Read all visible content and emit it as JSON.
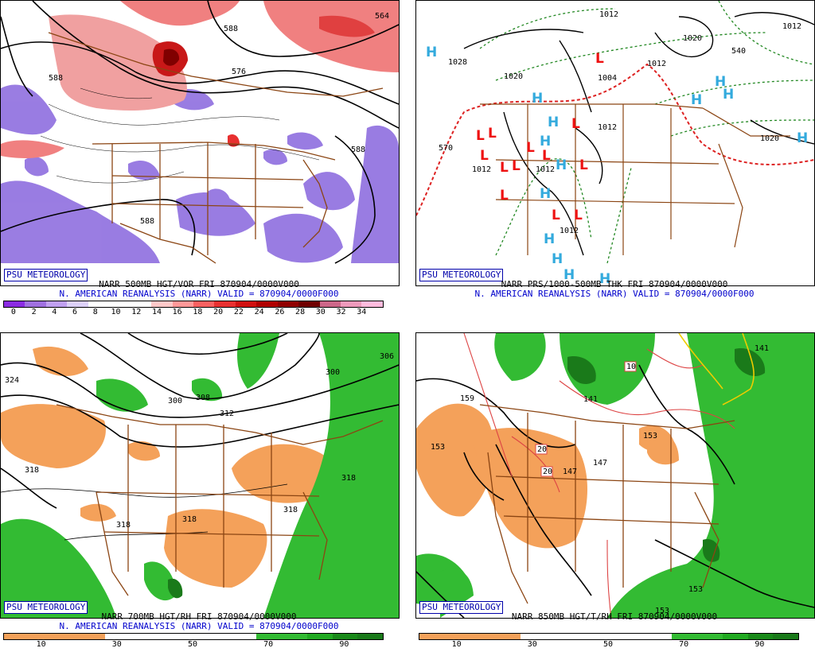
{
  "colors": {
    "border": "#8b4513",
    "vort_pos": "#e33a40",
    "vort_neg": "#8866dd",
    "rh_dry": "#f4a15a",
    "rh_moist": "#33bb33",
    "high_symbol": "#33aadd",
    "low_symbol": "#ee1111",
    "thickness_line": "#dd2222",
    "dew_line": "#228822"
  },
  "panels": [
    {
      "id": "p1",
      "badge": "PSU METEOROLOGY",
      "caption1": "NARR 500MB HGT/VOR FRI 870904/0000V000",
      "caption2": "N. AMERICAN REANALYSIS (NARR) VALID = 870904/0000F000",
      "colorbar_colors": [
        "#8a2be2",
        "#a070e0",
        "#c0a0f0",
        "#dcd0f8",
        "#ffffff",
        "#ffffff",
        "#ffffff",
        "#ffc8c8",
        "#ff9898",
        "#f86060",
        "#e83030",
        "#d01010",
        "#b00000",
        "#900000",
        "#700000",
        "#cc6688",
        "#ee99bb",
        "#ffbbdd"
      ],
      "colorbar_ticks": [
        "0",
        "2",
        "4",
        "6",
        "8",
        "10",
        "12",
        "14",
        "16",
        "18",
        "20",
        "22",
        "24",
        "26",
        "28",
        "30",
        "32",
        "34"
      ],
      "labels": [
        "588",
        "576",
        "564",
        "588",
        "588",
        "588"
      ]
    },
    {
      "id": "p2",
      "badge": "PSU METEOROLOGY",
      "caption1": "NARR PRS/1000-500MB THK FRI 870904/0000V000",
      "caption2": "N. AMERICAN REANALYSIS (NARR) VALID = 870904/0000F000",
      "labels": [
        "1028",
        "1020",
        "1012",
        "1020",
        "1012",
        "570",
        "1012",
        "1012",
        "1012",
        "1012",
        "1004",
        "1020",
        "540",
        "1012"
      ],
      "symbols": {
        "H": "H",
        "L": "L"
      }
    },
    {
      "id": "p3",
      "badge": "PSU METEOROLOGY",
      "caption1": "NARR 700MB HGT/RH FRI 870904/0000V000",
      "caption2": "N. AMERICAN REANALYSIS (NARR) VALID = 870904/0000F000",
      "colorbar_colors": [
        "#f4a15a",
        "#f4a15a",
        "#f4a15a",
        "#f4a15a",
        "#ffffff",
        "#ffffff",
        "#ffffff",
        "#ffffff",
        "#ffffff",
        "#ffffff",
        "#33bb33",
        "#33bb33",
        "#22aa22",
        "#1a8a1a",
        "#1a7a1a"
      ],
      "colorbar_ticks": [
        "10",
        "30",
        "50",
        "70",
        "90"
      ],
      "labels": [
        "324",
        "318",
        "300",
        "308",
        "312",
        "300",
        "306",
        "318",
        "318",
        "318",
        "318"
      ]
    },
    {
      "id": "p4",
      "badge": "PSU METEOROLOGY",
      "caption1": "NARR 850MB HGT/T/RH FRI 870904/0000V000",
      "caption2": "",
      "colorbar_colors": [
        "#f4a15a",
        "#f4a15a",
        "#f4a15a",
        "#f4a15a",
        "#ffffff",
        "#ffffff",
        "#ffffff",
        "#ffffff",
        "#ffffff",
        "#ffffff",
        "#33bb33",
        "#33bb33",
        "#22aa22",
        "#1a8a1a",
        "#1a7a1a"
      ],
      "colorbar_ticks": [
        "10",
        "30",
        "50",
        "70",
        "90"
      ],
      "labels": [
        "159",
        "153",
        "147",
        "141",
        "147",
        "153",
        "153",
        "153",
        "141"
      ],
      "boxed_labels": [
        "10",
        "20",
        "20"
      ]
    }
  ]
}
